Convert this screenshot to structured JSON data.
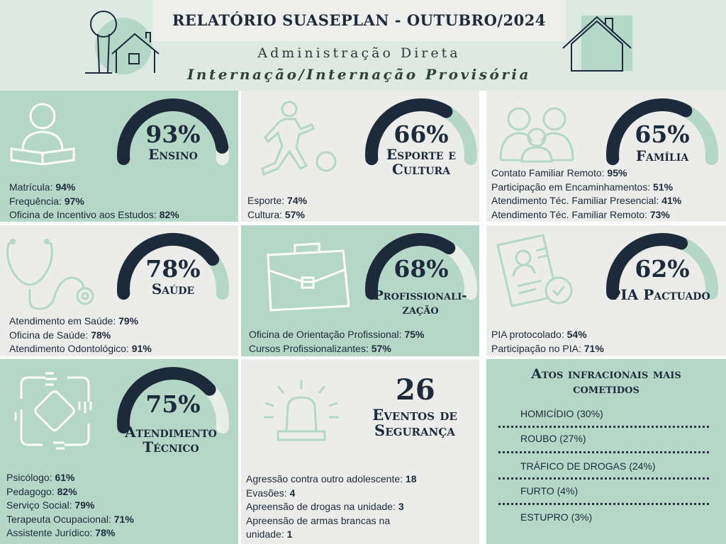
{
  "header": {
    "title": "RELATÓRIO SUASEPLAN - OUTUBRO/2024",
    "subtitle1": "Administração Direta",
    "subtitle2": "Internação/Internação Provisória"
  },
  "colors": {
    "dark": "#1d2a3a",
    "green_panel": "#b5d7c8",
    "gray_panel": "#ececea",
    "gauge_track_on_green": "#e8efe9",
    "gauge_track_on_gray": "#b5d7c8"
  },
  "panels": {
    "ensino": {
      "percent": "93%",
      "value": 0.93,
      "label": "Ensino",
      "icon": "reading-person-icon",
      "items": [
        {
          "label": "Matrícula: ",
          "value": "94%"
        },
        {
          "label": "Frequência: ",
          "value": "97%"
        },
        {
          "label": "Oficina de Incentivo aos Estudos: ",
          "value": "82%"
        }
      ]
    },
    "esporte": {
      "percent": "66%",
      "value": 0.66,
      "label1": "Esporte e",
      "label2": "Cultura",
      "icon": "soccer-player-icon",
      "items": [
        {
          "label": "Esporte: ",
          "value": "74%"
        },
        {
          "label": "Cultura: ",
          "value": "57%"
        }
      ]
    },
    "familia": {
      "percent": "65%",
      "value": 0.65,
      "label": "Família",
      "icon": "family-icon",
      "items": [
        {
          "label": "Contato Familiar Remoto: ",
          "value": "95%"
        },
        {
          "label": "Participação em Encaminhamentos: ",
          "value": "51%"
        },
        {
          "label": "Atendimento Téc. Familiar Presencial: ",
          "value": "41%"
        },
        {
          "label": "Atendimento Téc. Familiar Remoto: ",
          "value": "73%"
        }
      ]
    },
    "saude": {
      "percent": "78%",
      "value": 0.78,
      "label": "Saúde",
      "icon": "stethoscope-icon",
      "items": [
        {
          "label": "Atendimento em Saúde: ",
          "value": "79%"
        },
        {
          "label": "Oficina de Saúde: ",
          "value": "78%"
        },
        {
          "label": "Atendimento Odontológico: ",
          "value": "91%"
        }
      ]
    },
    "profissionalizacao": {
      "percent": "68%",
      "value": 0.68,
      "label1": "Profissionali-",
      "label2": "zação",
      "icon": "briefcase-icon",
      "items": [
        {
          "label": "Oficina de Orientação Profissional: ",
          "value": "75%"
        },
        {
          "label": "Cursos Profissionalizantes: ",
          "value": "57%"
        }
      ]
    },
    "pia": {
      "percent": "62%",
      "value": 0.62,
      "label": "PIA Pactuado",
      "icon": "document-approved-icon",
      "items": [
        {
          "label": "PIA protocolado: ",
          "value": "54%"
        },
        {
          "label": "Participação no PIA: ",
          "value": "71%"
        }
      ]
    },
    "atendimento": {
      "percent": "75%",
      "value": 0.75,
      "label1": "Atendimento",
      "label2": "Técnico",
      "icon": "joined-hands-icon",
      "items": [
        {
          "label": "Psicólogo: ",
          "value": "61%"
        },
        {
          "label": "Pedagogo: ",
          "value": "82%"
        },
        {
          "label": "Serviço Social: ",
          "value": "79%"
        },
        {
          "label": "Terapeuta Ocupacional: ",
          "value": "71%"
        },
        {
          "label": "Assistente Jurídico: ",
          "value": "78%"
        }
      ]
    },
    "seguranca": {
      "count": "26",
      "label1": "Eventos de",
      "label2": "Segurança",
      "icon": "alarm-siren-icon",
      "items": [
        {
          "label": "Agressão contra outro adolescente: ",
          "value": "18"
        },
        {
          "label": "Evasões: ",
          "value": "4"
        },
        {
          "label": "Apreensão de drogas na unidade: ",
          "value": "3"
        },
        {
          "label": "Apreensão de armas brancas na",
          "value": ""
        },
        {
          "label": "unidade: ",
          "value": "1"
        }
      ]
    },
    "atos": {
      "title1": "Atos infracionais mais",
      "title2": "cometidos",
      "items": [
        "HOMICÍDIO (30%)",
        "ROUBO (27%)",
        "TRÁFICO DE DROGAS (24%)",
        "FURTO (4%)",
        "ESTUPRO (3%)"
      ]
    }
  }
}
